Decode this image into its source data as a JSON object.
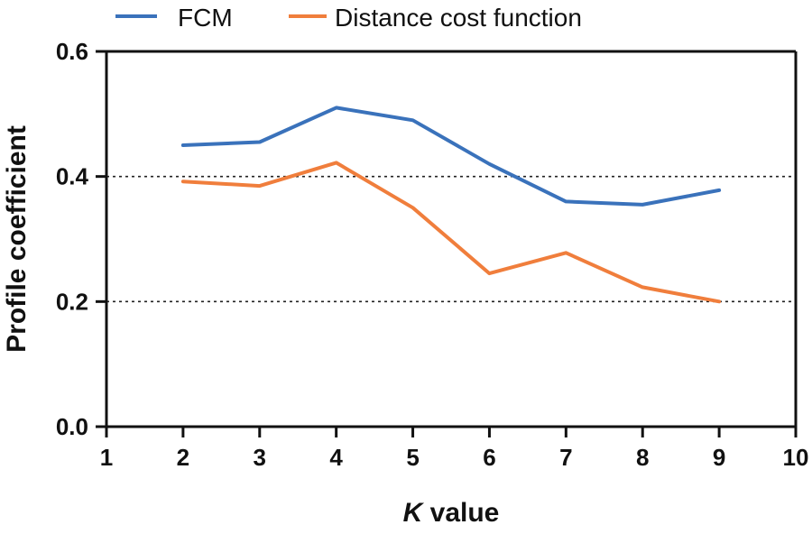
{
  "chart_data": {
    "type": "line",
    "title": "",
    "xlabel_italic": "K",
    "xlabel_rest": " value",
    "ylabel": "Profile coefficient",
    "xlim": [
      1,
      10
    ],
    "ylim": [
      0,
      0.6
    ],
    "xticks": [
      1,
      2,
      3,
      4,
      5,
      6,
      7,
      8,
      9,
      10
    ],
    "xtick_labels": [
      "1",
      "2",
      "3",
      "4",
      "5",
      "6",
      "7",
      "8",
      "9",
      "10"
    ],
    "yticks": [
      0.0,
      0.2,
      0.4,
      0.6
    ],
    "ytick_labels": [
      "0.0",
      "0.2",
      "0.4",
      "0.6"
    ],
    "gridlines_y": [
      0.2,
      0.4
    ],
    "grid_style": "dotted",
    "legend_position": "top",
    "series": [
      {
        "name": "FCM",
        "color": "#3a72bb",
        "x": [
          2,
          3,
          4,
          5,
          6,
          7,
          8,
          9
        ],
        "values": [
          0.45,
          0.455,
          0.51,
          0.49,
          0.42,
          0.36,
          0.355,
          0.378
        ]
      },
      {
        "name": "Distance cost function",
        "color": "#f07e3c",
        "x": [
          2,
          3,
          4,
          5,
          6,
          7,
          8,
          9
        ],
        "values": [
          0.392,
          0.385,
          0.422,
          0.35,
          0.245,
          0.278,
          0.223,
          0.2
        ]
      }
    ]
  }
}
